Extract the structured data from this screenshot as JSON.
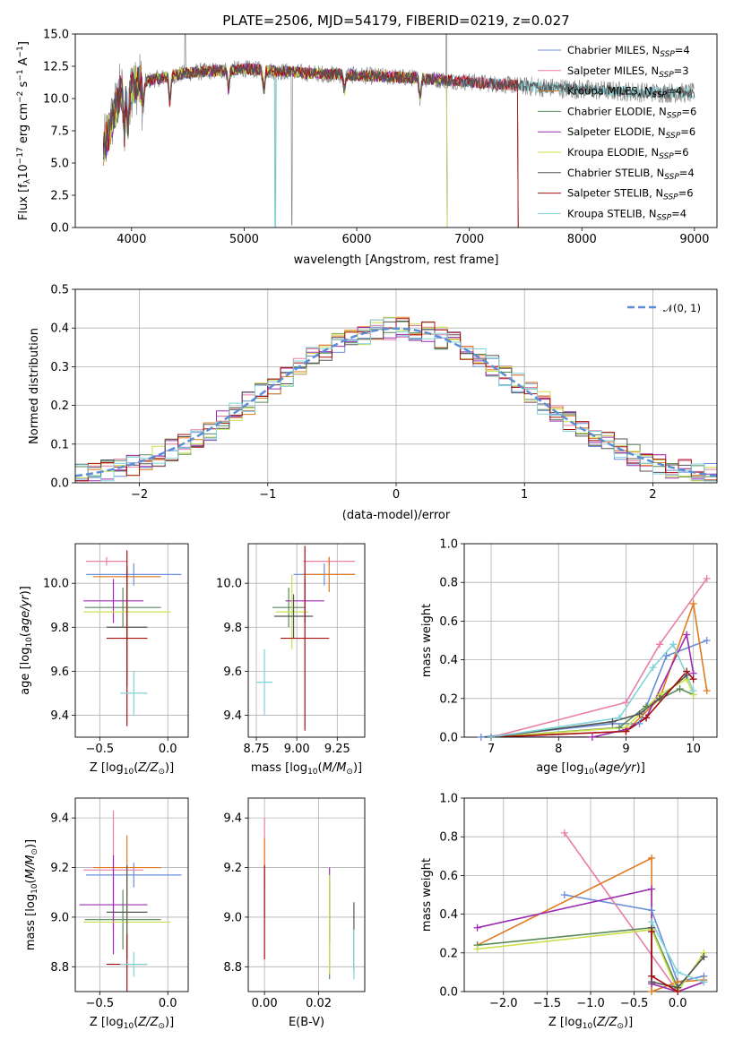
{
  "colors": [
    "#6A8FD8",
    "#E87FA8",
    "#E07B1F",
    "#5A8A5A",
    "#9B2DB0",
    "#C9E04A",
    "#555555",
    "#A50E0E",
    "#7FD3DA"
  ],
  "series_names": [
    "Chabrier MILES",
    "Salpeter MILES",
    "Kroupa MILES",
    "Chabrier ELODIE",
    "Salpeter ELODIE",
    "Kroupa ELODIE",
    "Chabrier STELIB",
    "Salpeter STELIB",
    "Kroupa STELIB"
  ],
  "n_ssp": [
    "4",
    "3",
    "4",
    "6",
    "6",
    "6",
    "4",
    "6",
    "4"
  ],
  "chart_data": [
    {
      "type": "line",
      "title": "PLATE=2506, MJD=54179, FIBERID=0219, z=0.027",
      "xlabel": "wavelength [Angstrom, rest frame]",
      "ylabel": "Flux [f_λ 10^-17 erg cm^-2 s^-1 A^-1]",
      "xlim": [
        3500,
        9200
      ],
      "ylim": [
        0,
        15
      ],
      "xticks": [
        "4000",
        "5000",
        "6000",
        "7000",
        "8000",
        "9000"
      ],
      "yticks": [
        "0.0",
        "2.5",
        "5.0",
        "7.5",
        "10.0",
        "12.5",
        "15.0"
      ],
      "legend_placement": "top-right",
      "model_end_wavelength": [
        7430,
        7430,
        7430,
        6800,
        6800,
        6800,
        9000,
        7430,
        9000
      ],
      "data_spectrum_shape": {
        "x": [
          3750,
          3900,
          4000,
          4200,
          4500,
          5000,
          5500,
          6000,
          6500,
          7000,
          7430,
          8000,
          8500,
          9000
        ],
        "y": [
          6.0,
          10.5,
          11.0,
          11.5,
          12.0,
          12.3,
          12.0,
          11.8,
          11.6,
          11.3,
          11.0,
          10.7,
          10.5,
          10.4
        ]
      }
    },
    {
      "type": "histogram",
      "xlabel": "(data-model)/error",
      "ylabel": "Normed distribution",
      "xlim": [
        -2.5,
        2.5
      ],
      "ylim": [
        0,
        0.5
      ],
      "xticks": [
        "−2",
        "−1",
        "0",
        "1",
        "2"
      ],
      "yticks": [
        "0.0",
        "0.1",
        "0.2",
        "0.3",
        "0.4",
        "0.5"
      ],
      "reference_curve": "N(0,1)",
      "legend_label": "𝒩(0, 1)",
      "legend_placement": "top-right",
      "bin_width": 0.1
    },
    {
      "type": "errorbar",
      "xlabel": "Z [log10(Z/Z⊙)]",
      "ylabel": "age  [log10(age/yr)]",
      "xlim": [
        -0.68,
        0.15
      ],
      "ylim": [
        9.3,
        10.18
      ],
      "xticks": [
        {
          "v": -0.5,
          "t": "−0.5"
        },
        {
          "v": 0,
          "t": "0.0"
        }
      ],
      "yticks": [
        {
          "v": 9.4,
          "t": "9.4"
        },
        {
          "v": 9.6,
          "t": "9.6"
        },
        {
          "v": 9.8,
          "t": "9.8"
        },
        {
          "v": 10.0,
          "t": "10.0"
        }
      ],
      "points": [
        {
          "x": -0.25,
          "xerr": 0.35,
          "y": 10.04,
          "yerr": 0.05
        },
        {
          "x": -0.45,
          "xerr": 0.15,
          "y": 10.1,
          "yerr": 0.02
        },
        {
          "x": -0.3,
          "xerr": 0.25,
          "y": 10.03,
          "yerr": 0.05
        },
        {
          "x": -0.33,
          "xerr": 0.28,
          "y": 9.89,
          "yerr": 0.09
        },
        {
          "x": -0.4,
          "xerr": 0.22,
          "y": 9.92,
          "yerr": 0.1
        },
        {
          "x": -0.3,
          "xerr": 0.32,
          "y": 9.87,
          "yerr": 0.17
        },
        {
          "x": -0.3,
          "xerr": 0.15,
          "y": 9.8,
          "yerr": 0.27
        },
        {
          "x": -0.3,
          "xerr": 0.15,
          "y": 9.75,
          "yerr": 0.4
        },
        {
          "x": -0.25,
          "xerr": 0.1,
          "y": 9.5,
          "yerr": 0.1
        }
      ]
    },
    {
      "type": "errorbar",
      "xlabel": "mass [log10(M/M⊙)]",
      "ylabel": "",
      "xlim": [
        8.7,
        9.42
      ],
      "ylim": [
        9.3,
        10.18
      ],
      "xticks": [
        {
          "v": 8.75,
          "t": "8.75"
        },
        {
          "v": 9.0,
          "t": "9.00"
        },
        {
          "v": 9.25,
          "t": "9.25"
        }
      ],
      "yticks": [
        {
          "v": 9.4,
          "t": "9.4"
        },
        {
          "v": 9.6,
          "t": "9.6"
        },
        {
          "v": 9.8,
          "t": "9.8"
        },
        {
          "v": 10.0,
          "t": "10.0"
        }
      ],
      "points": [
        {
          "x": 9.17,
          "xerr": 0.19,
          "y": 10.04,
          "yerr": 0.05
        },
        {
          "x": 9.2,
          "xerr": 0.16,
          "y": 10.1,
          "yerr": 0.02
        },
        {
          "x": 9.2,
          "xerr": 0.16,
          "y": 10.04,
          "yerr": 0.08
        },
        {
          "x": 8.95,
          "xerr": 0.1,
          "y": 9.89,
          "yerr": 0.09
        },
        {
          "x": 9.05,
          "xerr": 0.12,
          "y": 9.92,
          "yerr": 0.1
        },
        {
          "x": 8.97,
          "xerr": 0.1,
          "y": 9.87,
          "yerr": 0.17
        },
        {
          "x": 8.98,
          "xerr": 0.12,
          "y": 9.85,
          "yerr": 0.1
        },
        {
          "x": 9.05,
          "xerr": 0.15,
          "y": 9.75,
          "yerr": 0.42
        },
        {
          "x": 8.8,
          "xerr": 0.05,
          "y": 9.55,
          "yerr": 0.15
        }
      ]
    },
    {
      "type": "line",
      "xlabel": "age  [log10(age/yr)]",
      "ylabel": "mass weight",
      "xlim": [
        6.6,
        10.35
      ],
      "ylim": [
        0,
        1
      ],
      "xticks": [
        {
          "v": 7,
          "t": "7"
        },
        {
          "v": 8,
          "t": "8"
        },
        {
          "v": 9,
          "t": "9"
        },
        {
          "v": 10,
          "t": "10"
        }
      ],
      "yticks": [
        {
          "v": 0,
          "t": "0.0"
        },
        {
          "v": 0.2,
          "t": "0.2"
        },
        {
          "v": 0.4,
          "t": "0.4"
        },
        {
          "v": 0.6,
          "t": "0.6"
        },
        {
          "v": 0.8,
          "t": "0.8"
        },
        {
          "v": 1,
          "t": "1.0"
        }
      ],
      "series": [
        {
          "x": [
            6.85,
            8.8,
            9.2,
            9.6,
            10.2
          ],
          "y": [
            0.0,
            0.07,
            0.07,
            0.42,
            0.5
          ]
        },
        {
          "x": [
            7.0,
            9.0,
            9.5,
            10.2
          ],
          "y": [
            0.0,
            0.18,
            0.48,
            0.82
          ]
        },
        {
          "x": [
            7.0,
            9.0,
            9.5,
            10.0,
            10.2
          ],
          "y": [
            0.0,
            0.03,
            0.2,
            0.69,
            0.24
          ]
        },
        {
          "x": [
            7.0,
            8.9,
            9.3,
            9.8,
            10.0
          ],
          "y": [
            0.0,
            0.05,
            0.16,
            0.25,
            0.22
          ]
        },
        {
          "x": [
            7.0,
            8.5,
            9.0,
            9.3,
            9.9,
            10.0
          ],
          "y": [
            0.0,
            0.0,
            0.04,
            0.1,
            0.53,
            0.33
          ]
        },
        {
          "x": [
            7.0,
            9.0,
            9.5,
            9.9,
            10.0
          ],
          "y": [
            0.0,
            0.05,
            0.22,
            0.3,
            0.22
          ]
        },
        {
          "x": [
            7.0,
            8.8,
            9.2,
            9.5,
            9.9
          ],
          "y": [
            0.0,
            0.08,
            0.12,
            0.2,
            0.32
          ]
        },
        {
          "x": [
            7.0,
            9.0,
            9.3,
            9.9,
            10.0
          ],
          "y": [
            0.0,
            0.03,
            0.1,
            0.34,
            0.3
          ]
        },
        {
          "x": [
            7.0,
            8.9,
            9.4,
            9.7,
            10.0
          ],
          "y": [
            0.0,
            0.1,
            0.36,
            0.48,
            0.24
          ]
        }
      ]
    },
    {
      "type": "errorbar",
      "xlabel": "Z [log10(Z/Z⊙)]",
      "ylabel": "mass [log10(M/M⊙)]",
      "xlim": [
        -0.68,
        0.15
      ],
      "ylim": [
        8.7,
        9.48
      ],
      "xticks": [
        {
          "v": -0.5,
          "t": "−0.5"
        },
        {
          "v": 0,
          "t": "0.0"
        }
      ],
      "yticks": [
        {
          "v": 8.8,
          "t": "8.8"
        },
        {
          "v": 9.0,
          "t": "9.0"
        },
        {
          "v": 9.2,
          "t": "9.2"
        },
        {
          "v": 9.4,
          "t": "9.4"
        }
      ],
      "points": [
        {
          "x": -0.25,
          "xerr": 0.35,
          "y": 9.17,
          "yerr": 0.05
        },
        {
          "x": -0.4,
          "xerr": 0.22,
          "y": 9.19,
          "yerr": 0.24
        },
        {
          "x": -0.3,
          "xerr": 0.25,
          "y": 9.2,
          "yerr": 0.13
        },
        {
          "x": -0.33,
          "xerr": 0.28,
          "y": 8.99,
          "yerr": 0.12
        },
        {
          "x": -0.4,
          "xerr": 0.25,
          "y": 9.05,
          "yerr": 0.2
        },
        {
          "x": -0.3,
          "xerr": 0.32,
          "y": 8.98,
          "yerr": 0.12
        },
        {
          "x": -0.3,
          "xerr": 0.15,
          "y": 9.02,
          "yerr": 0.19
        },
        {
          "x": -0.3,
          "xerr": 0.15,
          "y": 8.81,
          "yerr": 0.12
        },
        {
          "x": -0.25,
          "xerr": 0.1,
          "y": 8.81,
          "yerr": 0.05
        }
      ]
    },
    {
      "type": "errorbar",
      "xlabel": "E(B-V)",
      "ylabel": "",
      "xlim": [
        -0.006,
        0.037
      ],
      "ylim": [
        8.7,
        9.48
      ],
      "xticks": [
        {
          "v": 0,
          "t": "0.00"
        },
        {
          "v": 0.02,
          "t": "0.02"
        }
      ],
      "yticks": [
        {
          "v": 8.8,
          "t": "8.8"
        },
        {
          "v": 9.0,
          "t": "9.0"
        },
        {
          "v": 9.2,
          "t": "9.2"
        },
        {
          "v": 9.4,
          "t": "9.4"
        }
      ],
      "points": [
        {
          "x": 0.0,
          "xerr": 0,
          "y": 9.1,
          "yerr": 0.1
        },
        {
          "x": 0.0,
          "xerr": 0,
          "y": 9.3,
          "yerr": 0.1
        },
        {
          "x": 0.0,
          "xerr": 0,
          "y": 9.22,
          "yerr": 0.1
        },
        {
          "x": 0.024,
          "xerr": 0,
          "y": 8.95,
          "yerr": 0.2
        },
        {
          "x": 0.024,
          "xerr": 0,
          "y": 9.05,
          "yerr": 0.15
        },
        {
          "x": 0.024,
          "xerr": 0,
          "y": 8.97,
          "yerr": 0.2
        },
        {
          "x": 0.033,
          "xerr": 0,
          "y": 8.92,
          "yerr": 0.14
        },
        {
          "x": 0.0,
          "xerr": 0,
          "y": 9.02,
          "yerr": 0.19
        },
        {
          "x": 0.033,
          "xerr": 0,
          "y": 8.85,
          "yerr": 0.1
        }
      ]
    },
    {
      "type": "line",
      "xlabel": "Z [log10(Z/Z⊙)]",
      "ylabel": "mass weight",
      "xlim": [
        -2.45,
        0.45
      ],
      "ylim": [
        0,
        1
      ],
      "xticks": [
        {
          "v": -2,
          "t": "−2.0"
        },
        {
          "v": -1.5,
          "t": "−1.5"
        },
        {
          "v": -1,
          "t": "−1.0"
        },
        {
          "v": -0.5,
          "t": "−0.5"
        },
        {
          "v": 0,
          "t": "0.0"
        }
      ],
      "yticks": [
        {
          "v": 0,
          "t": "0.0"
        },
        {
          "v": 0.2,
          "t": "0.2"
        },
        {
          "v": 0.4,
          "t": "0.4"
        },
        {
          "v": 0.6,
          "t": "0.6"
        },
        {
          "v": 0.8,
          "t": "0.8"
        },
        {
          "v": 1,
          "t": "1.0"
        }
      ],
      "series": [
        {
          "x": [
            -1.3,
            -0.3,
            0.0,
            0.3
          ],
          "y": [
            0.5,
            0.42,
            0.05,
            0.08
          ]
        },
        {
          "x": [
            -1.3,
            0.0,
            0.3
          ],
          "y": [
            0.82,
            0.0,
            0.05
          ]
        },
        {
          "x": [
            -2.3,
            -0.3,
            -0.3,
            0.0,
            0.3
          ],
          "y": [
            0.24,
            0.69,
            0.0,
            0.05,
            0.06
          ]
        },
        {
          "x": [
            -2.3,
            -0.3,
            0.0,
            0.3
          ],
          "y": [
            0.24,
            0.33,
            0.02,
            0.18
          ]
        },
        {
          "x": [
            -2.3,
            -0.3,
            -0.3,
            0.0,
            0.3
          ],
          "y": [
            0.33,
            0.53,
            0.04,
            0.0,
            0.05
          ]
        },
        {
          "x": [
            -2.3,
            -0.3,
            0.0,
            0.3
          ],
          "y": [
            0.22,
            0.32,
            0.0,
            0.2
          ]
        },
        {
          "x": [
            -0.3,
            -0.3,
            0.0,
            0.3
          ],
          "y": [
            0.33,
            0.05,
            0.02,
            0.18
          ]
        },
        {
          "x": [
            -0.3,
            -0.3,
            0.0
          ],
          "y": [
            0.31,
            0.08,
            0.0
          ]
        },
        {
          "x": [
            -0.3,
            0.0,
            0.3
          ],
          "y": [
            0.36,
            0.1,
            0.05
          ]
        }
      ]
    }
  ]
}
